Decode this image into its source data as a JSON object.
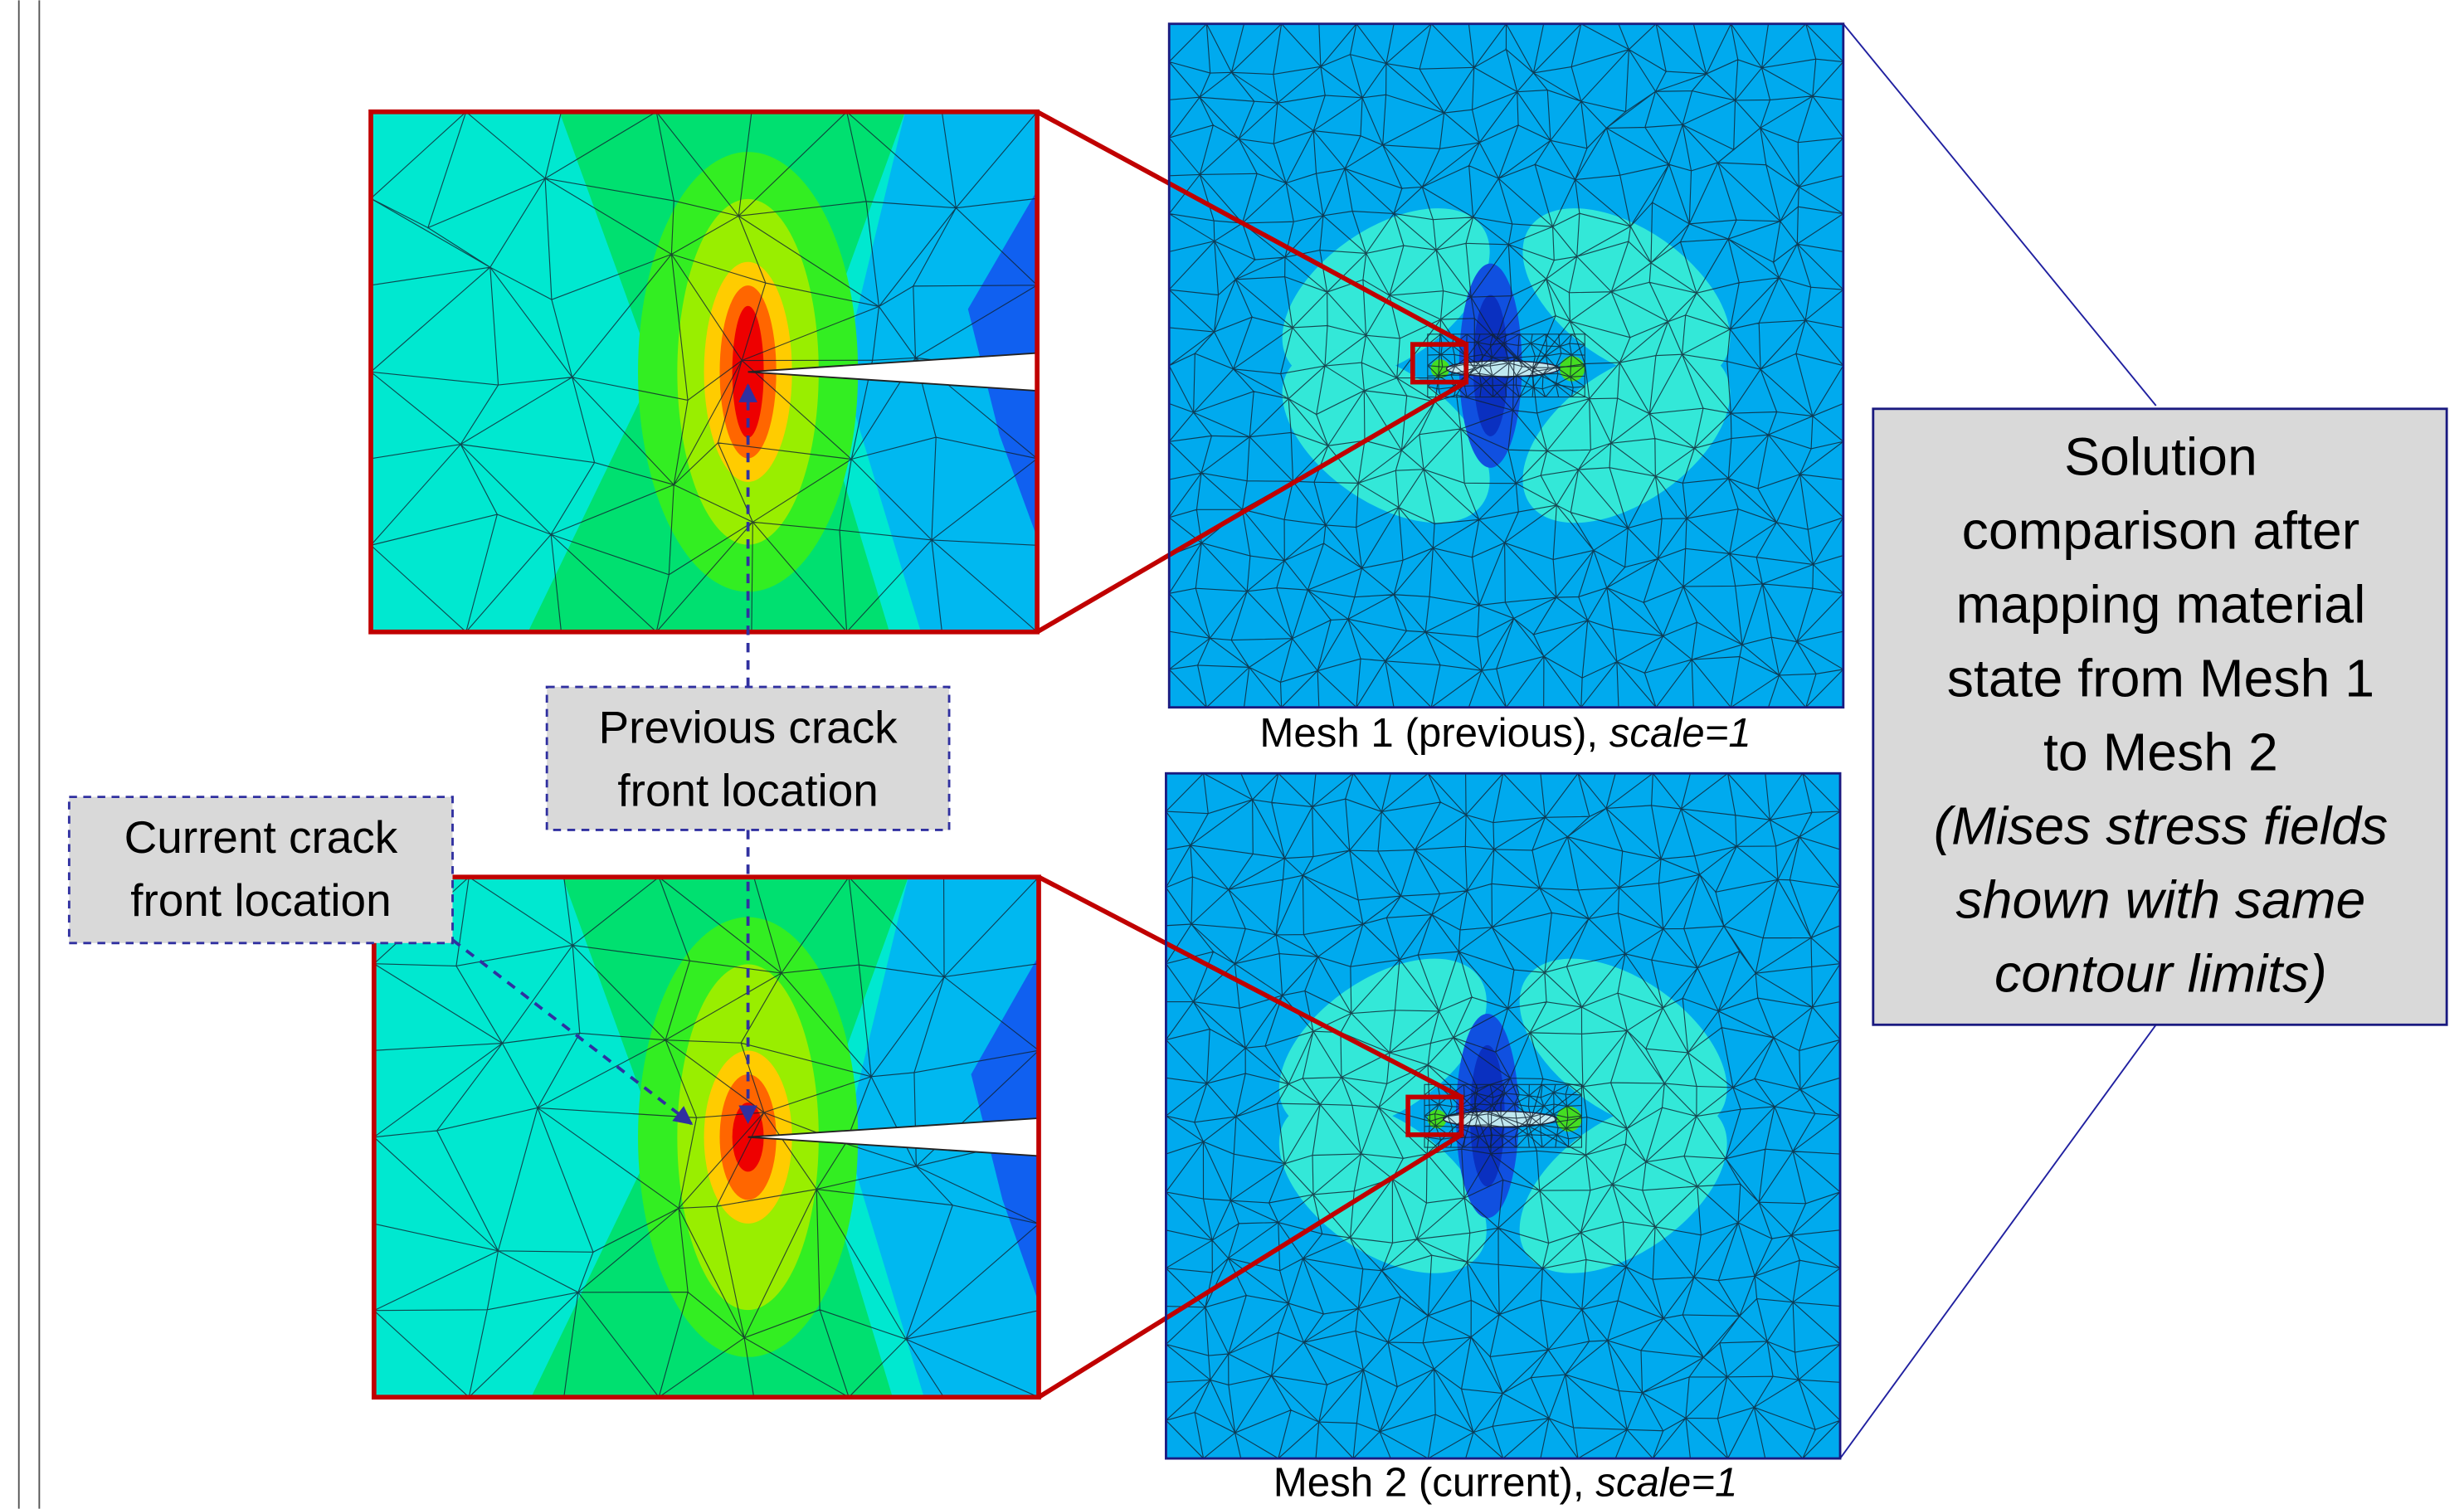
{
  "panels": [
    {
      "caption": "Mesh 1 (previous),",
      "scale": "scale=1"
    },
    {
      "caption": "Mesh 2 (current),",
      "scale": "scale=1"
    }
  ],
  "callouts": [
    {
      "lines": [
        "Previous crack",
        "front location"
      ]
    },
    {
      "lines": [
        "Current crack",
        "front location"
      ]
    }
  ],
  "summary": {
    "lines": [
      "Solution",
      "comparison after",
      "mapping material",
      "state from Mesh 1",
      "to Mesh 2"
    ],
    "italic_lines": [
      "(Mises stress fields",
      "shown with same",
      "contour limits)"
    ]
  }
}
